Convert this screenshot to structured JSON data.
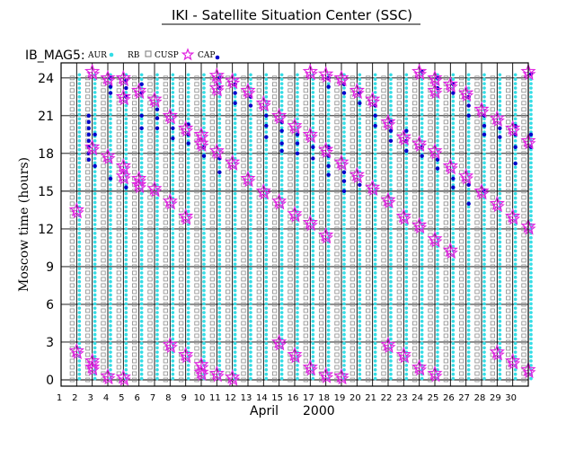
{
  "chart_data": {
    "type": "scatter",
    "title": "IKI - Satellite Situation Center (SSC)",
    "satellite_label": "IB_MAG5:",
    "legend": [
      {
        "label": "AUR",
        "marker": "cyan-dot",
        "color": "#33dde6"
      },
      {
        "label": "RB",
        "marker": "none",
        "color": "#000000"
      },
      {
        "label": "CUSP",
        "marker": "gray-square",
        "color": "#888888"
      },
      {
        "label": "CAP",
        "marker": "magenta-star",
        "color": "#e020e0"
      },
      {
        "label": "",
        "marker": "blue-dot",
        "color": "#0000cc"
      }
    ],
    "xlabel": "April",
    "xlabel_year": "2000",
    "ylabel": "Moscow time (hours)",
    "x_ticks": [
      "1",
      "2",
      "3",
      "4",
      "5",
      "6",
      "7",
      "8",
      "9",
      "10",
      "11",
      "12",
      "13",
      "14",
      "15",
      "16",
      "17",
      "18",
      "19",
      "20",
      "21",
      "22",
      "23",
      "24",
      "25",
      "26",
      "27",
      "28",
      "29",
      "30"
    ],
    "y_ticks": [
      "0",
      "3",
      "6",
      "9",
      "12",
      "15",
      "18",
      "21",
      "24"
    ],
    "xlim": [
      1,
      31
    ],
    "ylim": [
      -0.5,
      25.2
    ],
    "days": [
      {
        "day": 2,
        "cap": [
          2.3,
          13.5
        ],
        "blue": []
      },
      {
        "day": 2.6,
        "cap": [],
        "blue": [
          21.0,
          20.5,
          20.0,
          19.5,
          19.0,
          18.5,
          18.0,
          17.5
        ]
      },
      {
        "day": 3,
        "cap": [
          1.5,
          1.0,
          18.5,
          24.5
        ],
        "blue": [
          19.5,
          17.0
        ]
      },
      {
        "day": 4,
        "cap": [
          0.3,
          17.8,
          24.0
        ],
        "blue": [
          24.0,
          23.3,
          22.8,
          16.0
        ]
      },
      {
        "day": 5,
        "cap": [
          0.2,
          16.2,
          17.0,
          24.0,
          22.5
        ],
        "blue": [
          23.8,
          23.2,
          22.5,
          15.3
        ]
      },
      {
        "day": 6,
        "cap": [
          16.0,
          15.5,
          23.0
        ],
        "blue": [
          23.5,
          22.8,
          21.0,
          20.0
        ]
      },
      {
        "day": 7,
        "cap": [
          15.2,
          22.3
        ],
        "blue": [
          21.5,
          20.8,
          20.0
        ]
      },
      {
        "day": 8,
        "cap": [
          2.8,
          14.2,
          21.0
        ],
        "blue": [
          20.0,
          19.2
        ]
      },
      {
        "day": 9,
        "cap": [
          2.0,
          13.0,
          20.0
        ],
        "blue": [
          20.3,
          19.5,
          18.8
        ]
      },
      {
        "day": 10,
        "cap": [
          1.2,
          0.6,
          19.5,
          18.8
        ],
        "blue": [
          18.5,
          17.8
        ]
      },
      {
        "day": 11,
        "cap": [
          0.5,
          18.2,
          24.2,
          23.2
        ],
        "blue": [
          24.0,
          23.2,
          17.6,
          16.5
        ]
      },
      {
        "day": 12,
        "cap": [
          0.2,
          17.3,
          23.8
        ],
        "blue": [
          23.5,
          22.8,
          22.0
        ]
      },
      {
        "day": 13,
        "cap": [
          16.0,
          23.0
        ],
        "blue": [
          22.5,
          21.8
        ]
      },
      {
        "day": 14,
        "cap": [
          15.0,
          22.0
        ],
        "blue": [
          21.0,
          20.2,
          19.3
        ]
      },
      {
        "day": 15,
        "cap": [
          3.0,
          14.2,
          21.0
        ],
        "blue": [
          20.5,
          19.8,
          18.8,
          18.2
        ]
      },
      {
        "day": 16,
        "cap": [
          2.0,
          13.2,
          20.2
        ],
        "blue": [
          19.5,
          18.8,
          18.0
        ]
      },
      {
        "day": 17,
        "cap": [
          1.0,
          12.5,
          19.5,
          24.5
        ],
        "blue": [
          18.5,
          17.6
        ]
      },
      {
        "day": 18,
        "cap": [
          0.4,
          11.5,
          18.3,
          24.3
        ],
        "blue": [
          24.0,
          23.3,
          18.5,
          17.8,
          17.0,
          16.3
        ]
      },
      {
        "day": 19,
        "cap": [
          0.3,
          17.3,
          24.0
        ],
        "blue": [
          23.5,
          22.8,
          16.5,
          15.8,
          15.0
        ]
      },
      {
        "day": 20,
        "cap": [
          16.3,
          23.0
        ],
        "blue": [
          22.8,
          22.0,
          15.5
        ]
      },
      {
        "day": 21,
        "cap": [
          15.3,
          22.3
        ],
        "blue": [
          21.8,
          21.0,
          20.2
        ]
      },
      {
        "day": 22,
        "cap": [
          2.8,
          14.3,
          20.5
        ],
        "blue": [
          20.5,
          19.8,
          19.0
        ]
      },
      {
        "day": 23,
        "cap": [
          2.0,
          13.0,
          19.3
        ],
        "blue": [
          19.8,
          19.0,
          18.2
        ]
      },
      {
        "day": 24,
        "cap": [
          1.0,
          12.3,
          18.8,
          24.5
        ],
        "blue": [
          24.5,
          18.5,
          17.8
        ]
      },
      {
        "day": 25,
        "cap": [
          0.5,
          11.2,
          18.2,
          24.0,
          23.0
        ],
        "blue": [
          24.0,
          23.2,
          17.5,
          16.8
        ]
      },
      {
        "day": 26,
        "cap": [
          10.3,
          17.0,
          23.5
        ],
        "blue": [
          23.5,
          22.8,
          16.0,
          15.3
        ]
      },
      {
        "day": 27,
        "cap": [
          16.2,
          22.8
        ],
        "blue": [
          22.5,
          21.8,
          21.0,
          15.5,
          14.0
        ]
      },
      {
        "day": 28,
        "cap": [
          15.0,
          21.5
        ],
        "blue": [
          21.0,
          20.2,
          19.5,
          15.0
        ]
      },
      {
        "day": 29,
        "cap": [
          2.2,
          14.0,
          20.8
        ],
        "blue": [
          20.0,
          19.3
        ]
      },
      {
        "day": 30,
        "cap": [
          1.5,
          13.0,
          20.0
        ],
        "blue": [
          20.2,
          19.5,
          18.5,
          17.2
        ]
      },
      {
        "day": 31,
        "cap": [
          0.8,
          12.2,
          19.0,
          24.5
        ],
        "blue": [
          24.3,
          19.5,
          18.5
        ]
      }
    ]
  }
}
